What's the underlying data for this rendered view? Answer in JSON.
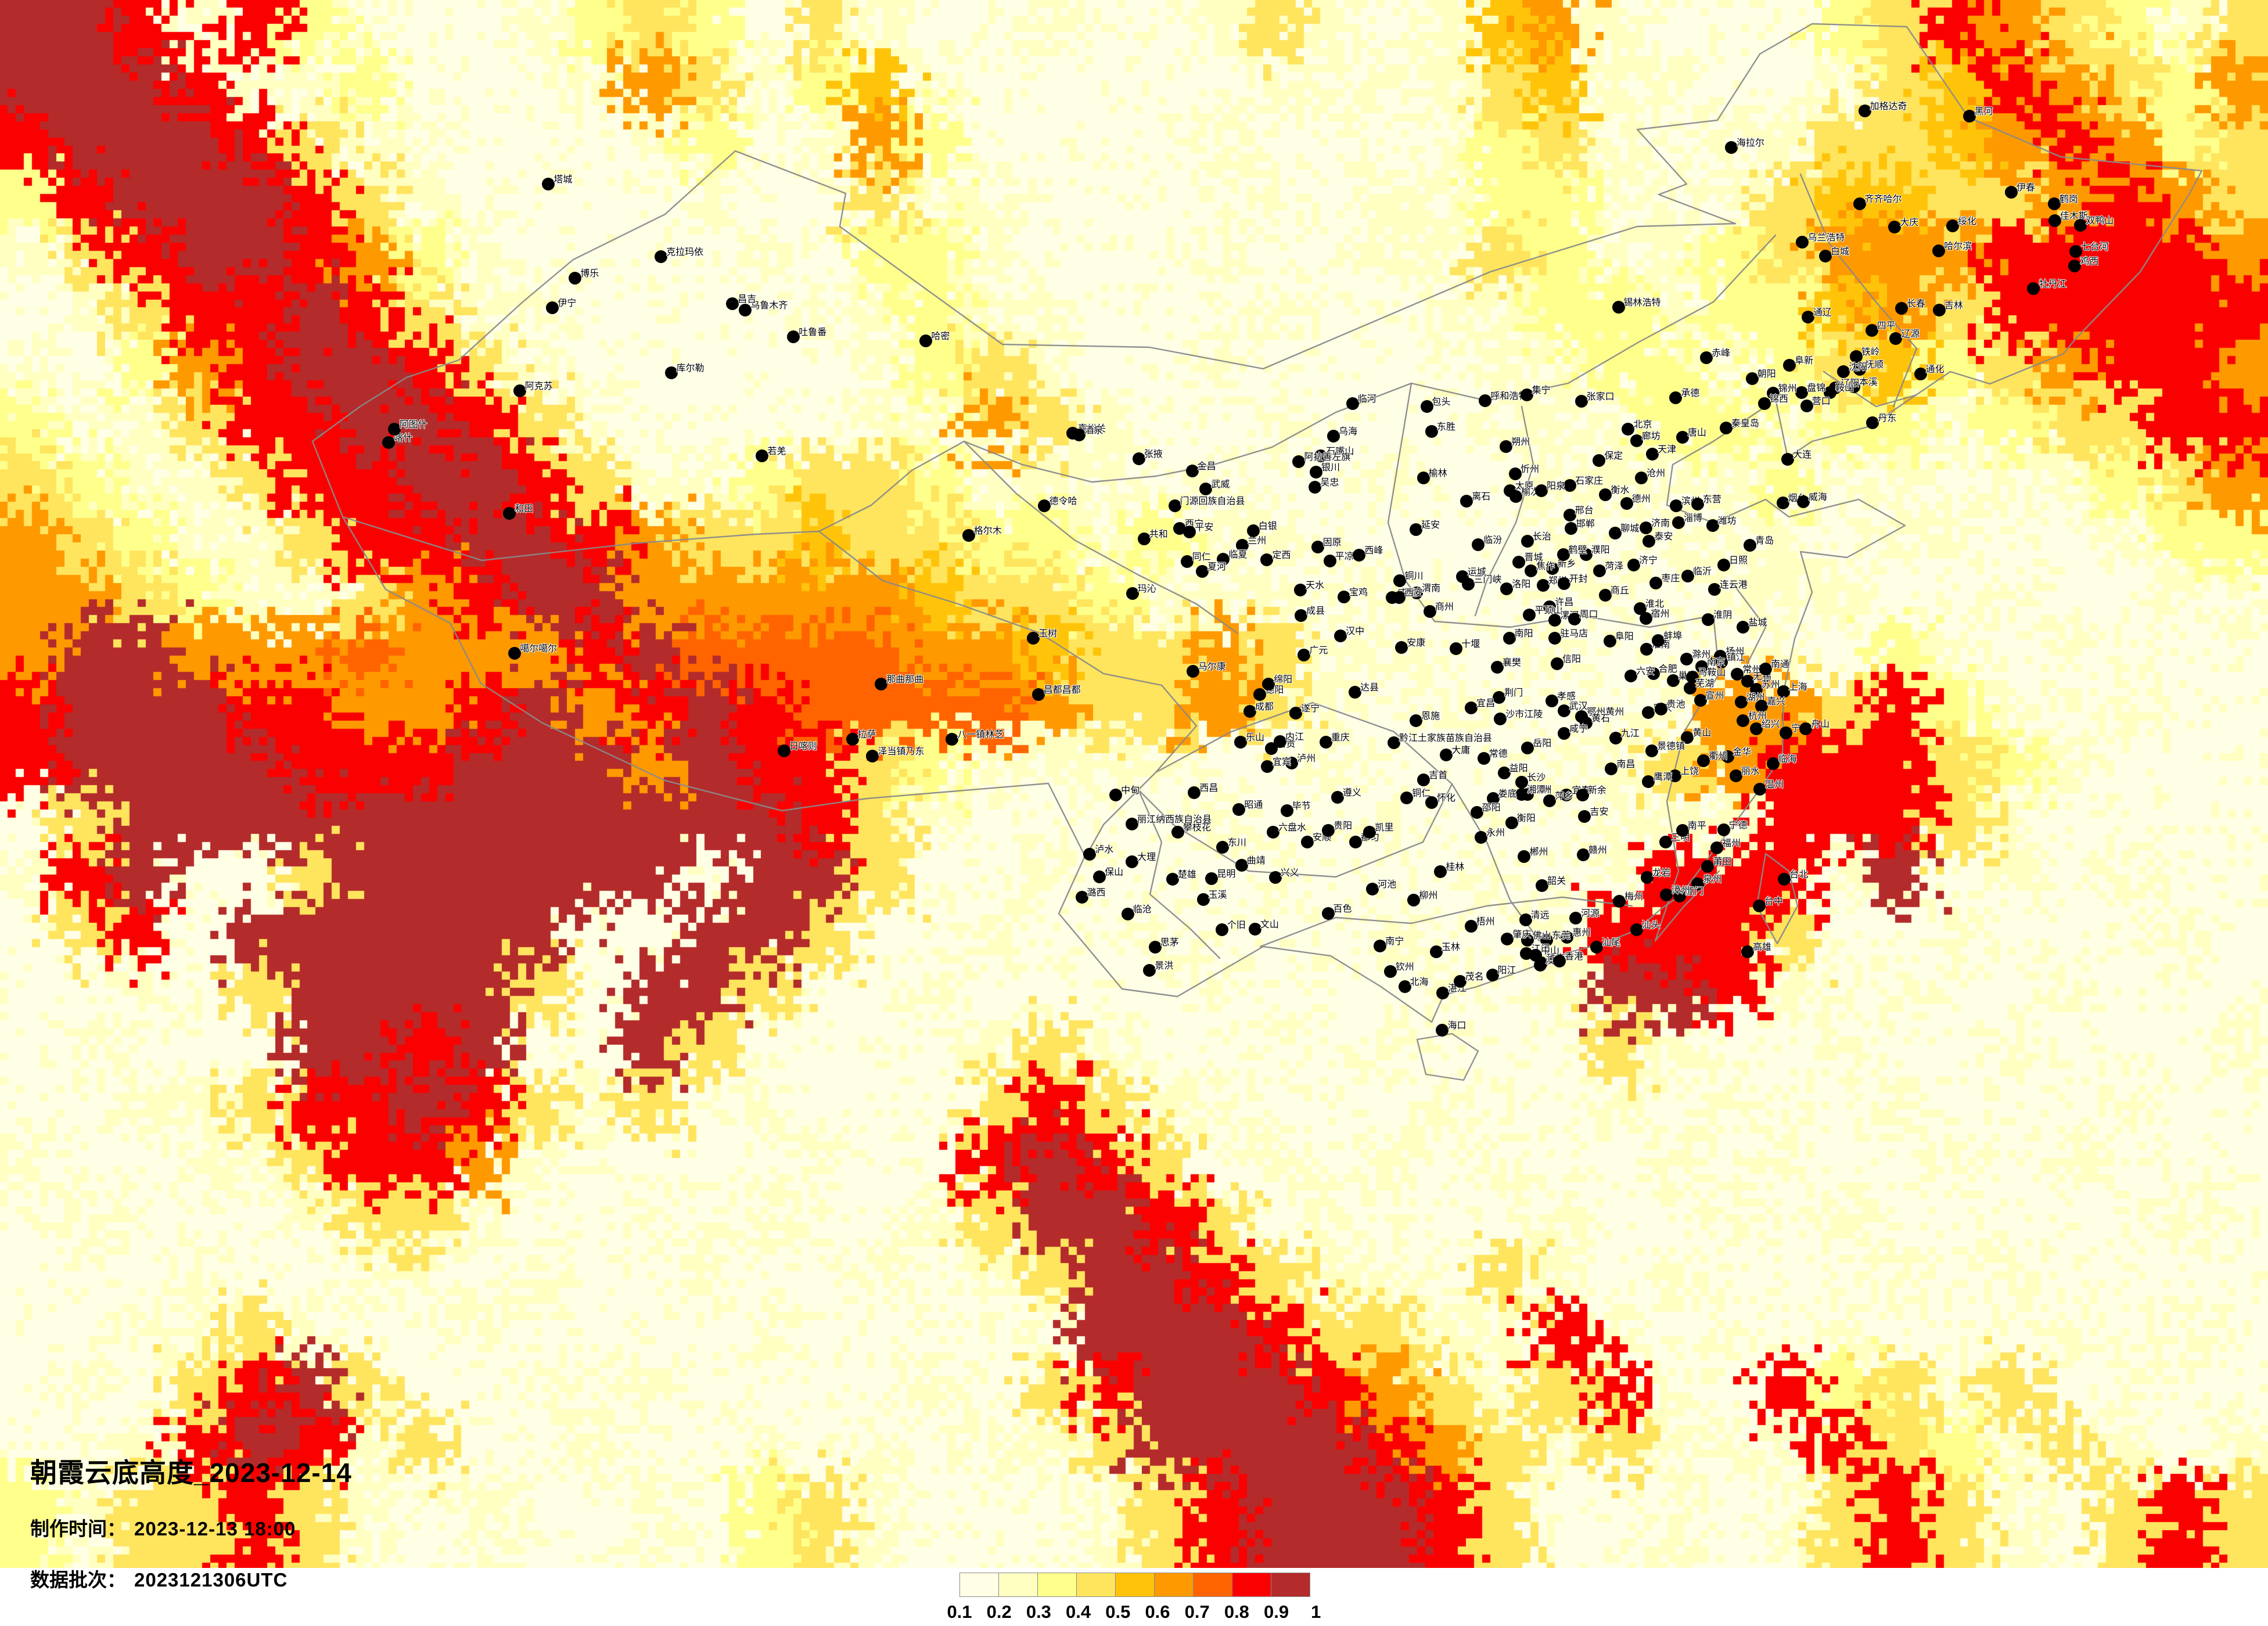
{
  "title_block": {
    "title": "朝霞云底高度_2023-12-14",
    "made_label": "制作时间：",
    "made_value": "2023-12-13 18:00",
    "batch_label": "数据批次：",
    "batch_value": "2023121306UTC"
  },
  "legend": {
    "tick_labels": [
      "0.1",
      "0.2",
      "0.3",
      "0.4",
      "0.5",
      "0.6",
      "0.7",
      "0.8",
      "0.9",
      "1"
    ],
    "colors": [
      "#FFFFE6",
      "#FFFFC2",
      "#FFFF8C",
      "#FFE45E",
      "#FFC40A",
      "#FF9900",
      "#FF6400",
      "#FB0000",
      "#B42B2B"
    ]
  },
  "heatmap": {
    "palette": {
      "1": "#FFFFE6",
      "2": "#FFFFC2",
      "3": "#FFFF8C",
      "4": "#FFE45E",
      "5": "#FFC40A",
      "6": "#FF9900",
      "7": "#FF6400",
      "8": "#FB0000",
      "9": "#B42B2B"
    },
    "border_color": "#8a8a8a",
    "rows": [
      "9982832112343142112112421256211134864324",
      "9998223111264235211111222245221124586436",
      "8999842211123126311112111234212244568634",
      "3899984211112114221111212233222455446864",
      "2489986321111213321112112243223466688886",
      "1248898422111122322111211223323356488888",
      "2136899842111112342112111122332345346886",
      "3224889984211112264211211122233233234488",
      "4322488998422344322212112112222322122346",
      "6432248899864454433232211112122212211233",
      "6643224689966666544322212111212221121122",
      "6996667666897777665446422112111213212111",
      "8999886689689877776446421211126648321211",
      "8999988899969884322221121112246888432111",
      "1499999999999984211112112111222888421111",
      "2891149999991994112111211121288829121211",
      "1481999999119941121121112112888411211121",
      "1121499994199411211112111212998212112111",
      "1211199891194111124211212111421121121112",
      "1122488984241211148422111211212112111211",
      "2112248862111121189841212121121211212111",
      "1211124421121211249984121112112121111121",
      "1112112212112112124998422142121112121111",
      "1122421121111211112999844228212121112121",
      "1214894112121111214899986424821834241211",
      "1128982411211212122499998642422284324212",
      "3244842121121342111248999841121248421484"
    ]
  },
  "cities": [
    [
      "喀什",
      75.99,
      39.47
    ],
    [
      "阿图什",
      76.17,
      39.9
    ],
    [
      "和田",
      79.93,
      37.12
    ],
    [
      "阿克苏",
      80.26,
      41.17
    ],
    [
      "库尔勒",
      85.2,
      41.76
    ],
    [
      "若羌",
      88.17,
      39.02
    ],
    [
      "吐鲁番",
      89.19,
      42.95
    ],
    [
      "乌鲁木齐",
      87.62,
      43.83
    ],
    [
      "昌吉",
      87.2,
      44.05
    ],
    [
      "克拉玛依",
      84.87,
      45.6
    ],
    [
      "博乐",
      82.07,
      44.9
    ],
    [
      "伊宁",
      81.33,
      43.92
    ],
    [
      "塔城",
      81.2,
      48.0
    ],
    [
      "哈密",
      93.51,
      42.83
    ],
    [
      "噶尔噶尔",
      80.1,
      32.5
    ],
    [
      "日喀则",
      88.88,
      29.27
    ],
    [
      "拉萨",
      91.11,
      29.65
    ],
    [
      "泽当镇乃东",
      91.77,
      29.1
    ],
    [
      "八一镇林芝",
      94.36,
      29.65
    ],
    [
      "那曲那曲",
      92.05,
      31.48
    ],
    [
      "昌都昌都",
      97.17,
      31.14
    ],
    [
      "玉树",
      97.01,
      33.0
    ],
    [
      "格尔木",
      94.9,
      36.4
    ],
    [
      "德令哈",
      97.36,
      37.37
    ],
    [
      "共和",
      100.62,
      36.28
    ],
    [
      "玛沁",
      100.24,
      34.48
    ],
    [
      "西宁",
      101.78,
      36.62
    ],
    [
      "平安",
      102.11,
      36.5
    ],
    [
      "同仁",
      102.02,
      35.52
    ],
    [
      "嘉峪关",
      98.29,
      39.77
    ],
    [
      "酒泉",
      98.51,
      39.72
    ],
    [
      "张掖",
      100.45,
      38.93
    ],
    [
      "金昌",
      102.19,
      38.52
    ],
    [
      "武威",
      102.64,
      37.93
    ],
    [
      "门源回族自治县",
      101.62,
      37.37
    ],
    [
      "兰州",
      103.83,
      36.06
    ],
    [
      "白银",
      104.18,
      36.55
    ],
    [
      "临夏",
      103.21,
      35.6
    ],
    [
      "夏河",
      102.52,
      35.2
    ],
    [
      "定西",
      104.63,
      35.58
    ],
    [
      "天水",
      105.72,
      34.58
    ],
    [
      "成县",
      105.74,
      33.75
    ],
    [
      "平凉",
      106.68,
      35.54
    ],
    [
      "固原",
      106.28,
      36.0
    ],
    [
      "西峰",
      107.64,
      35.73
    ],
    [
      "银川",
      106.23,
      38.49
    ],
    [
      "吴忠",
      106.2,
      37.99
    ],
    [
      "石嘴山",
      106.39,
      39.02
    ],
    [
      "阿拉善左旗",
      105.67,
      38.83
    ],
    [
      "乌海",
      106.8,
      39.67
    ],
    [
      "临河",
      107.42,
      40.75
    ],
    [
      "包头",
      109.84,
      40.66
    ],
    [
      "呼和浩特",
      111.75,
      40.84
    ],
    [
      "集宁",
      113.1,
      41.03
    ],
    [
      "东胜",
      110.0,
      39.82
    ],
    [
      "锡林浩特",
      116.09,
      43.93
    ],
    [
      "通辽",
      122.27,
      43.61
    ],
    [
      "赤峰",
      118.96,
      42.27
    ],
    [
      "海拉尔",
      119.77,
      49.21
    ],
    [
      "加格达奇",
      124.12,
      50.42
    ],
    [
      "乌兰浩特",
      122.09,
      46.08
    ],
    [
      "白城",
      122.84,
      45.62
    ],
    [
      "黑河",
      127.53,
      50.24
    ],
    [
      "伊春",
      128.9,
      47.73
    ],
    [
      "齐齐哈尔",
      123.95,
      47.35
    ],
    [
      "大庆",
      125.1,
      46.59
    ],
    [
      "绥化",
      126.99,
      46.63
    ],
    [
      "鹤岗",
      130.3,
      47.35
    ],
    [
      "佳木斯",
      130.32,
      46.8
    ],
    [
      "双鸭山",
      131.16,
      46.64
    ],
    [
      "七台河",
      131.0,
      45.77
    ],
    [
      "鸡西",
      130.97,
      45.3
    ],
    [
      "哈尔滨",
      126.54,
      45.8
    ],
    [
      "牡丹江",
      129.63,
      44.55
    ],
    [
      "长春",
      125.32,
      43.9
    ],
    [
      "吉林",
      126.55,
      43.84
    ],
    [
      "四平",
      124.35,
      43.17
    ],
    [
      "辽源",
      125.14,
      42.9
    ],
    [
      "铁岭",
      123.84,
      42.3
    ],
    [
      "抚顺",
      123.96,
      41.88
    ],
    [
      "沈阳",
      123.43,
      41.8
    ],
    [
      "本溪",
      123.77,
      41.3
    ],
    [
      "辽阳",
      123.17,
      41.27
    ],
    [
      "鞍山",
      122.99,
      41.11
    ],
    [
      "营口",
      122.23,
      40.67
    ],
    [
      "盘锦",
      122.07,
      41.12
    ],
    [
      "锦州",
      121.13,
      41.1
    ],
    [
      "锦西",
      120.85,
      40.75
    ],
    [
      "阜新",
      121.67,
      42.02
    ],
    [
      "朝阳",
      120.45,
      41.57
    ],
    [
      "丹东",
      124.38,
      40.12
    ],
    [
      "大连",
      121.61,
      38.91
    ],
    [
      "通化",
      125.94,
      41.73
    ],
    [
      "张家口",
      114.88,
      40.82
    ],
    [
      "承德",
      117.96,
      40.95
    ],
    [
      "秦皇岛",
      119.6,
      39.94
    ],
    [
      "唐山",
      118.18,
      39.63
    ],
    [
      "北京",
      116.41,
      39.9
    ],
    [
      "廊坊",
      116.68,
      39.52
    ],
    [
      "天津",
      117.2,
      39.08
    ],
    [
      "保定",
      115.46,
      38.87
    ],
    [
      "沧州",
      116.84,
      38.3
    ],
    [
      "石家庄",
      114.51,
      38.04
    ],
    [
      "衡水",
      115.67,
      37.74
    ],
    [
      "邢台",
      114.5,
      37.07
    ],
    [
      "邯郸",
      114.54,
      36.63
    ],
    [
      "德州",
      116.36,
      37.44
    ],
    [
      "滨州",
      117.97,
      37.38
    ],
    [
      "东营",
      118.67,
      37.43
    ],
    [
      "淄博",
      118.05,
      36.81
    ],
    [
      "潍坊",
      119.16,
      36.71
    ],
    [
      "烟台",
      121.45,
      37.46
    ],
    [
      "威海",
      122.12,
      37.51
    ],
    [
      "青岛",
      120.38,
      36.07
    ],
    [
      "日照",
      119.53,
      35.42
    ],
    [
      "临沂",
      118.35,
      35.05
    ],
    [
      "枣庄",
      117.32,
      34.81
    ],
    [
      "济宁",
      116.59,
      35.41
    ],
    [
      "泰安",
      117.09,
      36.2
    ],
    [
      "济南",
      116.99,
      36.65
    ],
    [
      "聊城",
      115.99,
      36.46
    ],
    [
      "菏泽",
      115.48,
      35.23
    ],
    [
      "濮阳",
      115.03,
      35.76
    ],
    [
      "朔州",
      112.43,
      39.33
    ],
    [
      "忻州",
      112.73,
      38.42
    ],
    [
      "太原",
      112.55,
      37.87
    ],
    [
      "榆次",
      112.75,
      37.68
    ],
    [
      "阳泉",
      113.58,
      37.86
    ],
    [
      "离石",
      111.14,
      37.52
    ],
    [
      "临汾",
      111.52,
      36.08
    ],
    [
      "长治",
      113.12,
      36.2
    ],
    [
      "晋城",
      112.85,
      35.5
    ],
    [
      "运城",
      111.0,
      35.03
    ],
    [
      "榆林",
      109.73,
      38.29
    ],
    [
      "延安",
      109.49,
      36.59
    ],
    [
      "铜川",
      108.95,
      34.9
    ],
    [
      "渭南",
      109.51,
      34.5
    ],
    [
      "咸阳",
      108.71,
      34.33
    ],
    [
      "西安",
      108.94,
      34.34
    ],
    [
      "宝鸡",
      107.14,
      34.36
    ],
    [
      "汉中",
      107.03,
      33.07
    ],
    [
      "安康",
      109.02,
      32.69
    ],
    [
      "商州",
      109.94,
      33.87
    ],
    [
      "三门峡",
      111.2,
      34.77
    ],
    [
      "洛阳",
      112.45,
      34.62
    ],
    [
      "郑州",
      113.63,
      34.75
    ],
    [
      "开封",
      114.31,
      34.8
    ],
    [
      "新乡",
      113.93,
      35.3
    ],
    [
      "焦作",
      113.24,
      35.22
    ],
    [
      "鹤壁",
      114.29,
      35.75
    ],
    [
      "许昌",
      113.85,
      34.04
    ],
    [
      "平顶山",
      113.19,
      33.77
    ],
    [
      "漯河",
      114.02,
      33.58
    ],
    [
      "周口",
      114.65,
      33.62
    ],
    [
      "商丘",
      115.66,
      34.41
    ],
    [
      "驻马店",
      114.02,
      33.0
    ],
    [
      "信阳",
      114.09,
      32.15
    ],
    [
      "南阳",
      112.53,
      33.0
    ],
    [
      "十堰",
      110.8,
      32.65
    ],
    [
      "襄樊",
      112.14,
      32.04
    ],
    [
      "荆门",
      112.2,
      31.03
    ],
    [
      "宜昌",
      111.29,
      30.7
    ],
    [
      "沙市江陵",
      112.24,
      30.33
    ],
    [
      "孝感",
      113.92,
      30.92
    ],
    [
      "武汉",
      114.31,
      30.59
    ],
    [
      "鄂州黄州",
      114.89,
      30.4
    ],
    [
      "黄石",
      115.04,
      30.2
    ],
    [
      "咸宁",
      114.32,
      29.84
    ],
    [
      "恩施",
      109.49,
      30.27
    ],
    [
      "岳阳",
      113.13,
      29.36
    ],
    [
      "宿州",
      116.98,
      33.65
    ],
    [
      "淮北",
      116.8,
      33.97
    ],
    [
      "阜阳",
      115.81,
      32.89
    ],
    [
      "淮南",
      117.0,
      32.63
    ],
    [
      "蚌埠",
      117.39,
      32.92
    ],
    [
      "淮阴",
      119.02,
      33.6
    ],
    [
      "盐城",
      120.16,
      33.35
    ],
    [
      "连云港",
      119.22,
      34.6
    ],
    [
      "扬州",
      119.42,
      32.39
    ],
    [
      "镇江",
      119.45,
      32.2
    ],
    [
      "南京",
      118.8,
      32.06
    ],
    [
      "滁州",
      118.32,
      32.3
    ],
    [
      "合肥",
      117.23,
      31.82
    ],
    [
      "巢湖",
      117.87,
      31.6
    ],
    [
      "六安",
      116.5,
      31.75
    ],
    [
      "安庆",
      117.06,
      30.54
    ],
    [
      "贵池",
      117.49,
      30.66
    ],
    [
      "马鞍山",
      118.51,
      31.7
    ],
    [
      "芜湖",
      118.43,
      31.35
    ],
    [
      "宣州",
      118.76,
      30.94
    ],
    [
      "常州",
      119.97,
      31.81
    ],
    [
      "无锡",
      120.3,
      31.57
    ],
    [
      "苏州",
      120.58,
      31.3
    ],
    [
      "南通",
      120.89,
      31.98
    ],
    [
      "上海",
      121.47,
      31.23
    ],
    [
      "湖州",
      120.09,
      30.89
    ],
    [
      "嘉兴",
      120.76,
      30.75
    ],
    [
      "杭州",
      120.15,
      30.27
    ],
    [
      "绍兴",
      120.58,
      30.0
    ],
    [
      "宁波",
      121.55,
      29.87
    ],
    [
      "舟山",
      122.2,
      30.0
    ],
    [
      "金华",
      119.65,
      29.08
    ],
    [
      "衢州",
      118.87,
      28.94
    ],
    [
      "临海",
      121.13,
      28.85
    ],
    [
      "丽水",
      119.92,
      28.45
    ],
    [
      "温州",
      120.7,
      28.0
    ],
    [
      "黄山",
      118.34,
      29.72
    ],
    [
      "景德镇",
      117.18,
      29.27
    ],
    [
      "上饶",
      117.94,
      28.45
    ],
    [
      "鹰潭",
      117.07,
      28.26
    ],
    [
      "九江",
      116.0,
      29.7
    ],
    [
      "南昌",
      115.86,
      28.68
    ],
    [
      "宜春",
      114.4,
      27.81
    ],
    [
      "新余",
      114.92,
      27.82
    ],
    [
      "萍乡",
      113.85,
      27.62
    ],
    [
      "株洲",
      113.13,
      27.83
    ],
    [
      "湘潭",
      112.94,
      27.83
    ],
    [
      "长沙",
      112.94,
      28.23
    ],
    [
      "益阳",
      112.36,
      28.55
    ],
    [
      "常德",
      111.7,
      29.03
    ],
    [
      "大庸",
      110.48,
      29.13
    ],
    [
      "吉首",
      109.74,
      28.31
    ],
    [
      "铜仁",
      109.19,
      27.72
    ],
    [
      "怀化",
      110.0,
      27.57
    ],
    [
      "娄底",
      112.0,
      27.7
    ],
    [
      "邵阳",
      111.47,
      27.24
    ],
    [
      "衡阳",
      112.61,
      26.89
    ],
    [
      "永州",
      111.61,
      26.42
    ],
    [
      "郴州",
      113.02,
      25.77
    ],
    [
      "韶关",
      113.6,
      24.81
    ],
    [
      "赣州",
      114.94,
      25.83
    ],
    [
      "吉安",
      114.99,
      27.11
    ],
    [
      "三明",
      117.64,
      26.26
    ],
    [
      "南平",
      118.18,
      26.64
    ],
    [
      "宁德",
      119.52,
      26.66
    ],
    [
      "福州",
      119.3,
      26.07
    ],
    [
      "莆田",
      119.0,
      25.45
    ],
    [
      "泉州",
      118.68,
      24.87
    ],
    [
      "厦门",
      118.09,
      24.48
    ],
    [
      "漳州",
      117.65,
      24.51
    ],
    [
      "龙岩",
      117.02,
      25.08
    ],
    [
      "梅州",
      116.12,
      24.29
    ],
    [
      "汕头",
      116.68,
      23.35
    ],
    [
      "台北",
      121.5,
      25.03
    ],
    [
      "台中",
      120.68,
      24.14
    ],
    [
      "高雄",
      120.3,
      22.62
    ],
    [
      "清远",
      113.06,
      23.68
    ],
    [
      "河源",
      114.7,
      23.74
    ],
    [
      "惠州",
      114.42,
      23.11
    ],
    [
      "东莞",
      113.75,
      23.02
    ],
    [
      "佛山",
      113.12,
      23.02
    ],
    [
      "肇庆",
      112.47,
      23.05
    ],
    [
      "江门",
      113.08,
      22.58
    ],
    [
      "中山",
      113.39,
      22.52
    ],
    [
      "珠海",
      113.58,
      22.27
    ],
    [
      "澳门",
      113.54,
      22.19
    ],
    [
      "香港",
      114.17,
      22.32
    ],
    [
      "汕尾",
      115.38,
      22.79
    ],
    [
      "梧州",
      111.28,
      23.48
    ],
    [
      "玉林",
      110.15,
      22.63
    ],
    [
      "南宁",
      108.32,
      22.82
    ],
    [
      "钦州",
      108.65,
      21.98
    ],
    [
      "北海",
      109.12,
      21.48
    ],
    [
      "湛江",
      110.36,
      21.27
    ],
    [
      "茂名",
      110.92,
      21.66
    ],
    [
      "阳江",
      111.98,
      21.86
    ],
    [
      "桂林",
      110.29,
      25.27
    ],
    [
      "柳州",
      109.42,
      24.33
    ],
    [
      "河池",
      108.07,
      24.7
    ],
    [
      "百色",
      106.62,
      23.9
    ],
    [
      "海口",
      110.35,
      20.03
    ],
    [
      "成都",
      104.07,
      30.57
    ],
    [
      "德阳",
      104.4,
      31.13
    ],
    [
      "绵阳",
      104.68,
      31.47
    ],
    [
      "广元",
      105.84,
      32.44
    ],
    [
      "达县",
      107.5,
      31.21
    ],
    [
      "遂宁",
      105.57,
      30.51
    ],
    [
      "重庆",
      106.55,
      29.56
    ],
    [
      "泸州",
      105.44,
      28.87
    ],
    [
      "宜宾",
      104.64,
      28.75
    ],
    [
      "自贡",
      104.78,
      29.35
    ],
    [
      "内江",
      105.06,
      29.58
    ],
    [
      "乐山",
      103.77,
      29.55
    ],
    [
      "马尔康",
      102.21,
      31.9
    ],
    [
      "黔江土家族苗族自治县",
      108.77,
      29.53
    ],
    [
      "攀枝花",
      101.72,
      26.58
    ],
    [
      "西昌",
      102.26,
      27.88
    ],
    [
      "昭通",
      103.72,
      27.34
    ],
    [
      "毕节",
      105.28,
      27.3
    ],
    [
      "六盘水",
      104.83,
      26.59
    ],
    [
      "安顺",
      105.95,
      26.25
    ],
    [
      "贵阳",
      106.63,
      26.65
    ],
    [
      "都匀",
      107.52,
      26.26
    ],
    [
      "凯里",
      107.98,
      26.58
    ],
    [
      "遵义",
      106.93,
      27.73
    ],
    [
      "兴义",
      104.9,
      25.09
    ],
    [
      "曲靖",
      103.8,
      25.49
    ],
    [
      "东川",
      103.18,
      26.08
    ],
    [
      "昆明",
      102.83,
      25.04
    ],
    [
      "楚雄",
      101.55,
      25.03
    ],
    [
      "玉溪",
      102.55,
      24.35
    ],
    [
      "个旧",
      103.16,
      23.36
    ],
    [
      "文山",
      104.24,
      23.37
    ],
    [
      "大理",
      100.23,
      25.6
    ],
    [
      "保山",
      99.17,
      25.11
    ],
    [
      "泸水",
      98.85,
      25.85
    ],
    [
      "潞西",
      98.59,
      24.43
    ],
    [
      "临沧",
      100.09,
      23.88
    ],
    [
      "思茅",
      100.98,
      22.79
    ],
    [
      "景洪",
      100.8,
      22.01
    ],
    [
      "丽江纳西族自治县",
      100.23,
      26.86
    ],
    [
      "中甸",
      99.7,
      27.82
    ]
  ]
}
